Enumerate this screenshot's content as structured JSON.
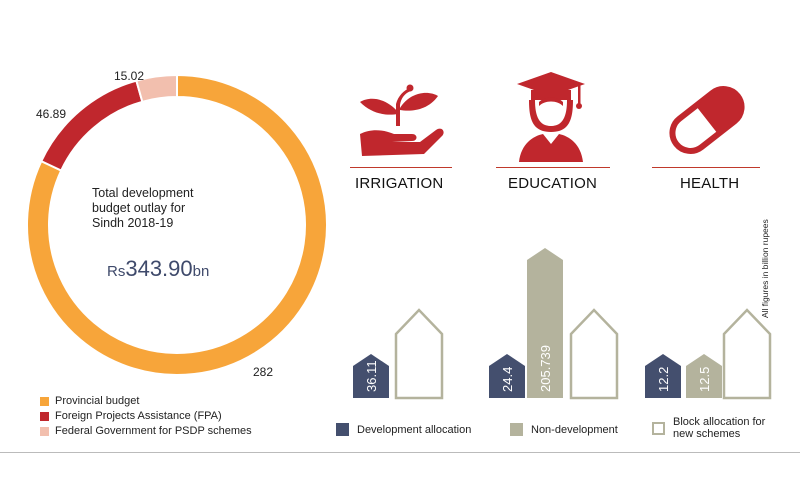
{
  "chart_data": [
    {
      "type": "pie",
      "title": "Total development budget outlay for Sindh 2018-19",
      "total": {
        "currency": "Rs",
        "value": "343.90",
        "unit": "bn"
      },
      "slices": [
        {
          "name": "Provincial budget",
          "value": 282,
          "label": "282",
          "color": "#f7a53a"
        },
        {
          "name": "Foreign Projects Assistance (FPA)",
          "value": 46.89,
          "label": "46.89",
          "color": "#c0272d"
        },
        {
          "name": "Federal Government for PSDP schemes",
          "value": 15.02,
          "label": "15.02",
          "color": "#f2bfae"
        }
      ]
    },
    {
      "type": "bar",
      "note": "All figures in billion rupees",
      "categories": [
        "IRRIGATION",
        "EDUCATION",
        "HEALTH"
      ],
      "series": [
        {
          "name": "Development allocation",
          "color": "#444f6e",
          "values": [
            36.11,
            24.4,
            12.2
          ],
          "labels": [
            "36.11",
            "24.4",
            "12.2"
          ]
        },
        {
          "name": "Non-development",
          "color": "#b4b39d",
          "values": [
            null,
            205.739,
            12.5
          ],
          "labels": [
            "",
            "205.739",
            "12.5"
          ]
        },
        {
          "name": "Block allocation for new schemes",
          "color": "#b4b39d",
          "values": [
            null,
            null,
            null
          ],
          "labels": [
            "",
            "",
            ""
          ]
        }
      ]
    }
  ],
  "center": {
    "line1": "Total development",
    "line2": "budget outlay for",
    "line3": "Sindh 2018-19"
  },
  "legend_bottom": {
    "dev": "Development allocation",
    "nondev": "Non-development",
    "block_line1": "Block allocation for",
    "block_line2": "new schemes"
  },
  "colors": {
    "accent_red": "#c0272d",
    "navy": "#444f6e",
    "khaki": "#b4b39d",
    "orange": "#f7a53a",
    "pink": "#f2bfae"
  }
}
